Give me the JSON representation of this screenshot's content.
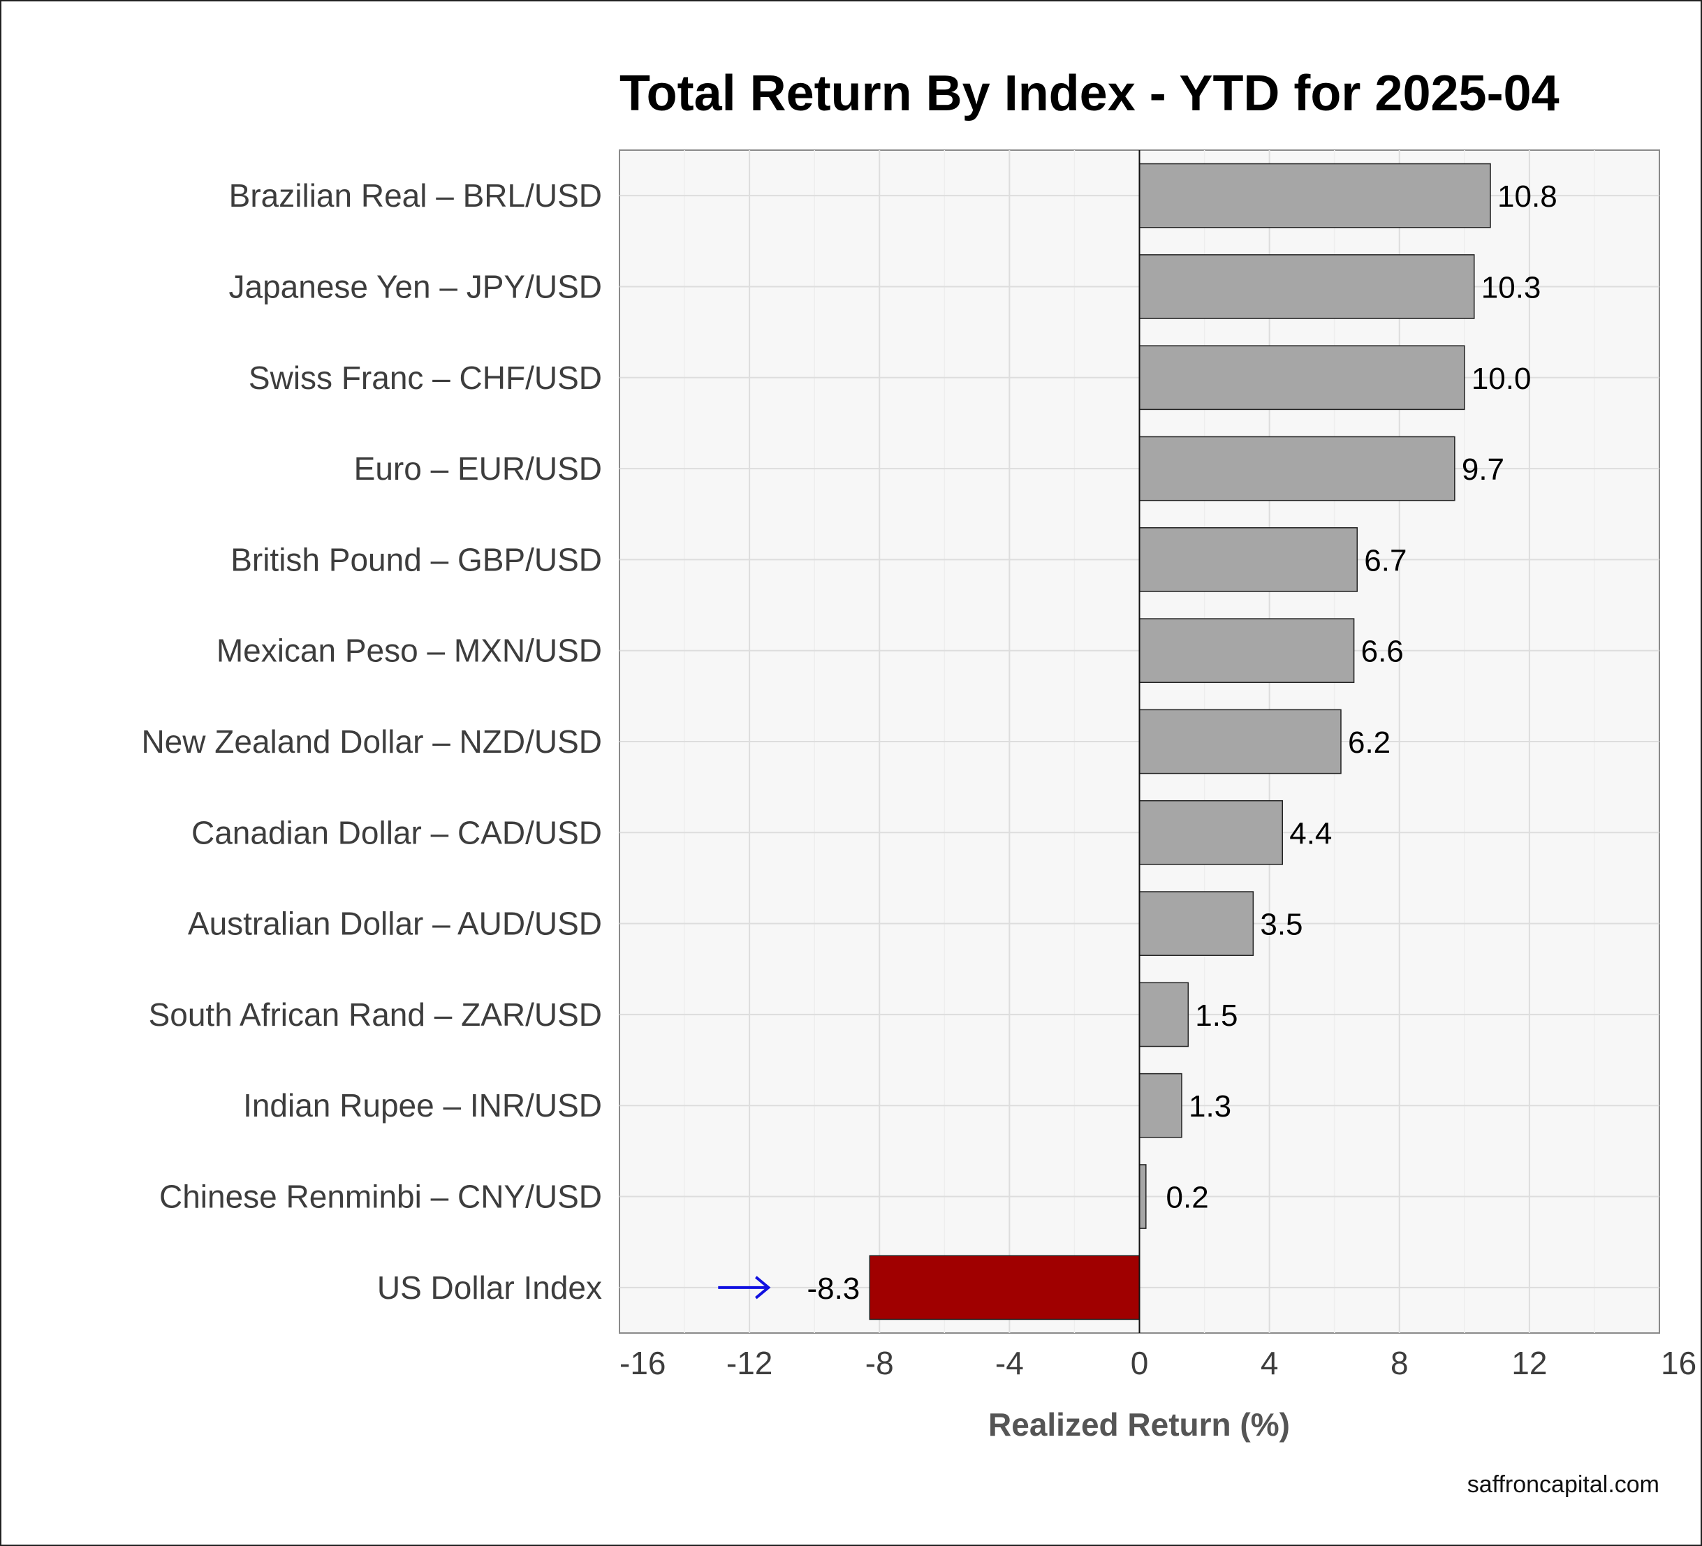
{
  "chart_data": {
    "type": "bar",
    "orientation": "horizontal",
    "title": "Total Return By Index - YTD for 2025-04",
    "xlabel": "Realized Return (%)",
    "ylabel": "",
    "xlim": [
      -16,
      16
    ],
    "xticks": [
      "-16",
      "-12",
      "-8",
      "-4",
      "0",
      "4",
      "8",
      "12",
      "16"
    ],
    "grid": true,
    "categories": [
      "Brazilian Real – BRL/USD",
      "Japanese Yen – JPY/USD",
      "Swiss Franc – CHF/USD",
      "Euro – EUR/USD",
      "British Pound – GBP/USD",
      "Mexican Peso – MXN/USD",
      "New Zealand Dollar – NZD/USD",
      "Canadian Dollar – CAD/USD",
      "Australian Dollar – AUD/USD",
      "South African Rand – ZAR/USD",
      "Indian Rupee – INR/USD",
      "Chinese Renminbi – CNY/USD",
      "US Dollar Index"
    ],
    "values": [
      10.8,
      10.3,
      10.0,
      9.7,
      6.7,
      6.6,
      6.2,
      4.4,
      3.5,
      1.5,
      1.3,
      0.2,
      -8.3
    ],
    "value_labels": [
      "10.8",
      "10.3",
      "10.0",
      "9.7",
      "6.7",
      "6.6",
      "6.2",
      "4.4",
      "3.5",
      "1.5",
      "1.3",
      "0.2",
      "-8.3"
    ],
    "bar_color": "#a6a6a6",
    "highlight_color": "#a00000",
    "highlight_category": "US Dollar Index",
    "arrow_color": "#1010e0"
  },
  "footer": {
    "credit": "saffroncapital.com"
  }
}
